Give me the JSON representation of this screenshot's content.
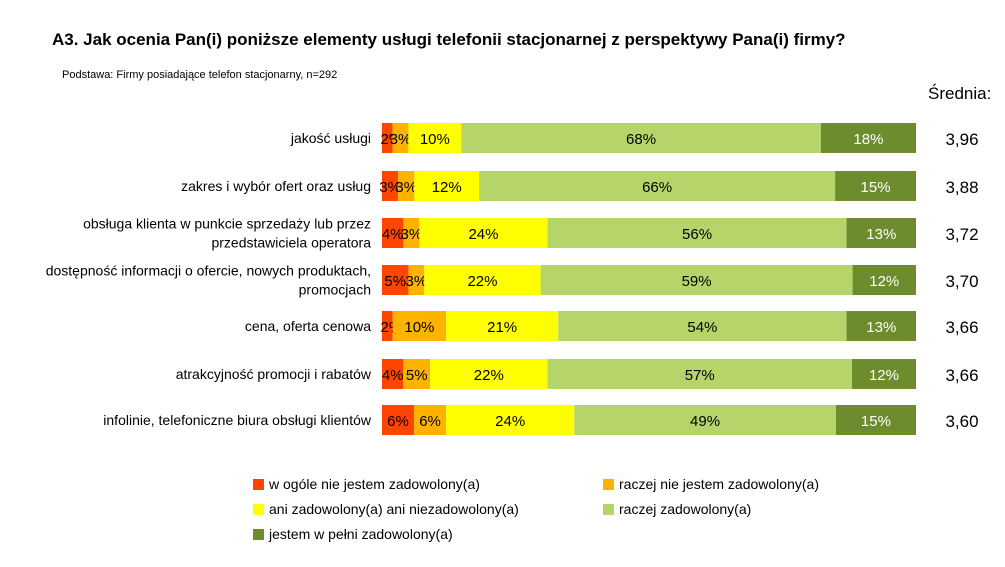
{
  "title": "A3. Jak ocenia Pan(i) poniższe elementy usługi telefonii stacjonarnej z perspektywy Pana(i) firmy?",
  "subtitle": "Podstawa: Firmy posiadające telefon stacjonarny, n=292",
  "average_header": "Średnia:",
  "colors": {
    "w ogóle nie jestem zadowolony(a)": "#ff4500",
    "raczej nie jestem zadowolony(a)": "#ffb300",
    "ani zadowolony(a) ani niezadowolony(a)": "#ffff00",
    "raczej zadowolony(a)": "#b5d56a",
    "jestem w pełni zadowolony(a)": "#6d8c2d"
  },
  "chart_data": {
    "type": "bar",
    "orientation": "horizontal",
    "stacked": true,
    "unit": "%",
    "categories": [
      "jakość usługi",
      "zakres i wybór ofert oraz usług",
      "obsługa klienta w punkcie sprzedaży lub przez przedstawiciela operatora",
      "dostępność informacji o ofercie, nowych produktach, promocjach",
      "cena, oferta cenowa",
      "atrakcyjność promocji i rabatów",
      "infolinie, telefoniczne biura obsługi klientów"
    ],
    "category_lines": [
      [
        "jakość usługi"
      ],
      [
        "zakres i wybór ofert oraz usług"
      ],
      [
        "obsługa klienta w punkcie sprzedaży lub przez",
        "przedstawiciela operatora"
      ],
      [
        "dostępność informacji o ofercie, nowych produktach,",
        "promocjach"
      ],
      [
        "cena, oferta cenowa"
      ],
      [
        "atrakcyjność promocji i rabatów"
      ],
      [
        "infolinie, telefoniczne biura obsługi klientów"
      ]
    ],
    "series": [
      {
        "name": "w ogóle nie jestem zadowolony(a)",
        "values": [
          2,
          3,
          4,
          5,
          2,
          4,
          6
        ]
      },
      {
        "name": "raczej nie jestem zadowolony(a)",
        "values": [
          3,
          3,
          3,
          3,
          10,
          5,
          6
        ]
      },
      {
        "name": "ani zadowolony(a) ani niezadowolony(a)",
        "values": [
          10,
          12,
          24,
          22,
          21,
          22,
          24
        ]
      },
      {
        "name": "raczej zadowolony(a)",
        "values": [
          68,
          66,
          56,
          59,
          54,
          57,
          49
        ]
      },
      {
        "name": "jestem w pełni zadowolony(a)",
        "values": [
          18,
          15,
          13,
          12,
          13,
          12,
          15
        ]
      }
    ],
    "averages": [
      "3,96",
      "3,88",
      "3,72",
      "3,70",
      "3,66",
      "3,66",
      "3,60"
    ],
    "legend_position": "bottom",
    "grid": false
  }
}
